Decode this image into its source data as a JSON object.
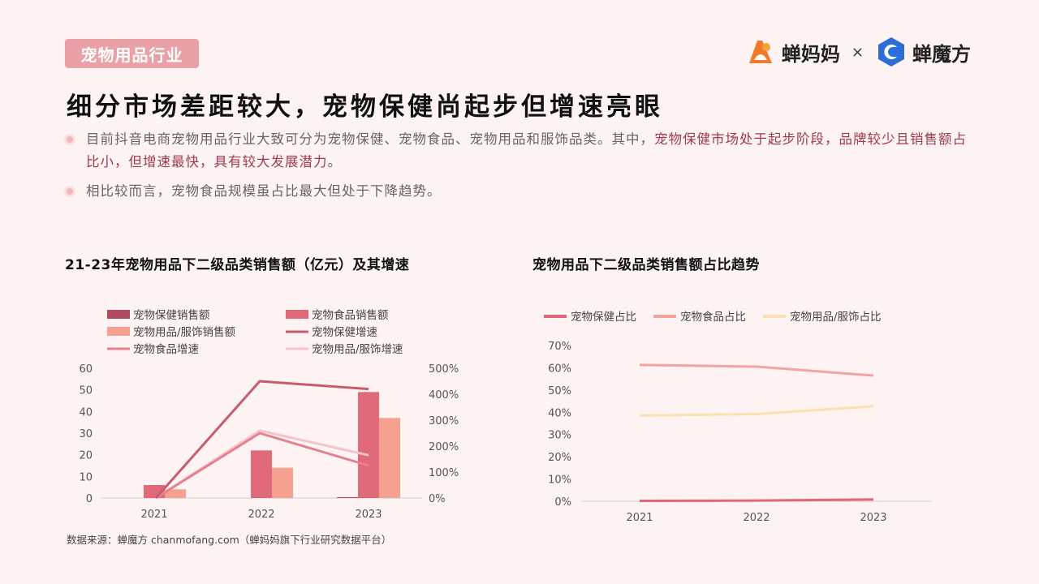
{
  "header": {
    "tag": "宠物用品行业",
    "logo_left": "蝉妈妈",
    "logo_separator": "×",
    "logo_right": "蝉魔方"
  },
  "headline": "细分市场差距较大，宠物保健尚起步但增速亮眼",
  "bullets": [
    {
      "part1": "目前抖音电商宠物用品行业大致可分为宠物保健、宠物食品、宠物用品和服饰品类。其中，",
      "highlight": "宠物保健市场处于起步阶段，品牌较少且销售额占比小，但增速最快，具有较大发展潜力",
      "part2": "。"
    },
    {
      "part1": "相比较而言，宠物食品规模虽占比最大但处于下降趋势。",
      "highlight": "",
      "part2": ""
    }
  ],
  "source": "数据来源：蝉魔方  chanmofang.com（蝉妈妈旗下行业研究数据平台）",
  "colors": {
    "health": "#b34a5f",
    "food": "#e0697a",
    "supplies": "#f6a190",
    "health_growth": "#c75b6e",
    "food_growth": "#e48092",
    "supplies_growth": "#f3c4c8",
    "share_health": "#e2667a",
    "share_food": "#f0a5a0",
    "share_supplies": "#fbe0b0"
  },
  "chart_data": [
    {
      "type": "bar",
      "title": "21-23年宠物用品下二级品类销售额（亿元）及其增速",
      "categories": [
        "2021",
        "2022",
        "2023"
      ],
      "series": [
        {
          "name": "宠物保健销售额",
          "kind": "bar",
          "axis": "left",
          "values": [
            null,
            null,
            0.4
          ]
        },
        {
          "name": "宠物食品销售额",
          "kind": "bar",
          "axis": "left",
          "values": [
            6,
            22,
            49
          ]
        },
        {
          "name": "宠物用品/服饰销售额",
          "kind": "bar",
          "axis": "left",
          "values": [
            4,
            14,
            37
          ]
        },
        {
          "name": "宠物保健增速",
          "kind": "line",
          "axis": "right",
          "values": [
            0,
            450,
            420
          ]
        },
        {
          "name": "宠物食品增速",
          "kind": "line",
          "axis": "right",
          "values": [
            0,
            250,
            125
          ]
        },
        {
          "name": "宠物用品/服饰增速",
          "kind": "line",
          "axis": "right",
          "values": [
            0,
            260,
            165
          ]
        }
      ],
      "y_left": {
        "ticks": [
          0,
          10,
          20,
          30,
          40,
          50,
          60
        ],
        "range": [
          0,
          60
        ]
      },
      "y_right": {
        "ticks": [
          "0%",
          "100%",
          "200%",
          "300%",
          "400%",
          "500%"
        ],
        "range": [
          0,
          500
        ]
      },
      "legend": "top"
    },
    {
      "type": "line",
      "title": "宠物用品下二级品类销售额占比趋势",
      "categories": [
        "2021",
        "2022",
        "2023"
      ],
      "series": [
        {
          "name": "宠物保健占比",
          "values": [
            0.2,
            0.3,
            0.8
          ]
        },
        {
          "name": "宠物食品占比",
          "values": [
            61.3,
            60.5,
            56.5
          ]
        },
        {
          "name": "宠物用品/服饰占比",
          "values": [
            38.5,
            39.2,
            42.7
          ]
        }
      ],
      "y": {
        "ticks": [
          "0%",
          "10%",
          "20%",
          "30%",
          "40%",
          "50%",
          "60%",
          "70%"
        ],
        "range": [
          0,
          70
        ]
      },
      "legend": "top"
    }
  ]
}
